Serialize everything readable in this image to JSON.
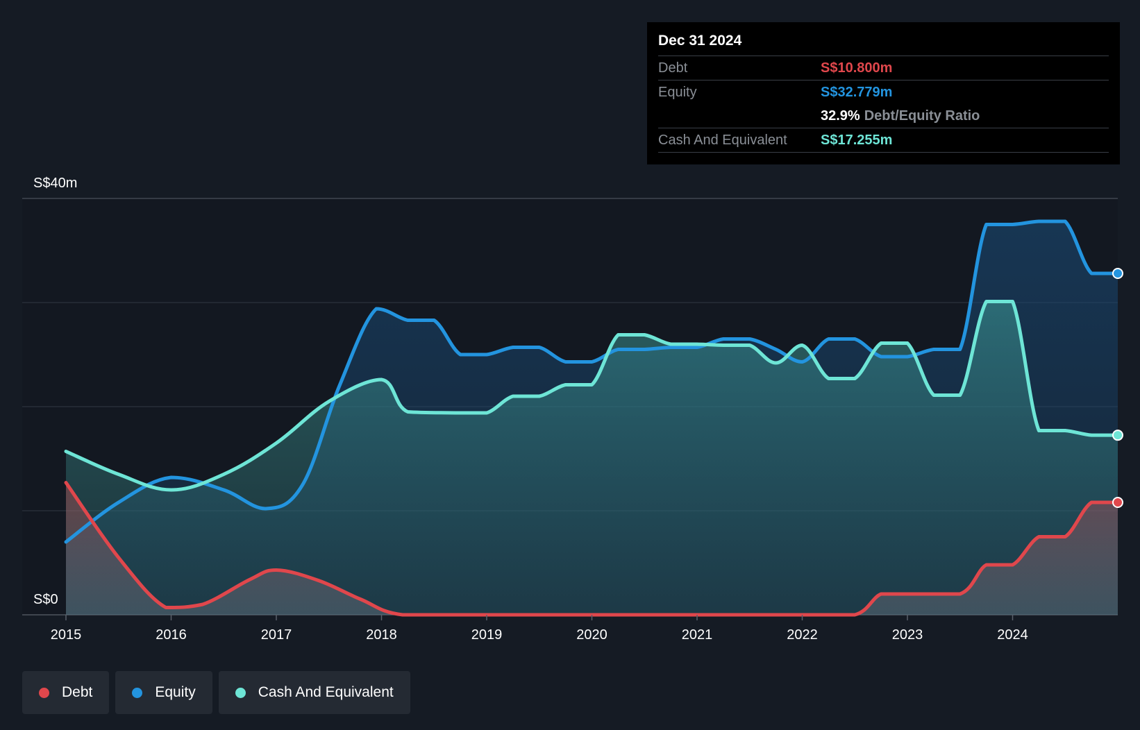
{
  "tooltip": {
    "date": "Dec 31 2024",
    "debt_label": "Debt",
    "debt_value": "S$10.800m",
    "equity_label": "Equity",
    "equity_value": "S$32.779m",
    "ratio_value": "32.9%",
    "ratio_label": "Debt/Equity Ratio",
    "cash_label": "Cash And Equivalent",
    "cash_value": "S$17.255m"
  },
  "legend": {
    "debt": "Debt",
    "equity": "Equity",
    "cash": "Cash And Equivalent"
  },
  "colors": {
    "debt": "#e0474c",
    "equity": "#2394df",
    "cash": "#6ee5d6",
    "background": "#151b24"
  },
  "chart_data": {
    "type": "area",
    "ylim": [
      0,
      40
    ],
    "xlim": [
      2015,
      2025
    ],
    "y_tick_labels": [
      "S$0",
      "S$40m"
    ],
    "x_ticks": [
      2015,
      2016,
      2017,
      2018,
      2019,
      2020,
      2021,
      2022,
      2023,
      2024
    ],
    "grid": true,
    "legend_position": "bottom-left",
    "series": [
      {
        "name": "Debt",
        "x": [
          2015.0,
          2015.5,
          2015.95,
          2016.3,
          2016.75,
          2017.0,
          2017.4,
          2017.8,
          2018.2,
          2019.0,
          2020.0,
          2021.0,
          2022.0,
          2022.5,
          2022.75,
          2023.0,
          2023.5,
          2023.75,
          2024.0,
          2024.25,
          2024.5,
          2024.75,
          2025.0
        ],
        "y": [
          12.7,
          5.5,
          0.7,
          1.0,
          3.4,
          4.3,
          3.3,
          1.5,
          0.0,
          0.0,
          0.0,
          0.0,
          0.0,
          0.0,
          2.0,
          2.0,
          2.0,
          4.8,
          4.8,
          7.5,
          7.5,
          10.8,
          10.8
        ]
      },
      {
        "name": "Equity",
        "x": [
          2015.0,
          2015.5,
          2016.0,
          2016.5,
          2016.9,
          2017.25,
          2017.6,
          2017.95,
          2018.25,
          2018.5,
          2018.75,
          2019.0,
          2019.25,
          2019.5,
          2019.75,
          2020.0,
          2020.25,
          2020.5,
          2020.75,
          2021.0,
          2021.25,
          2021.5,
          2021.75,
          2022.0,
          2022.25,
          2022.5,
          2022.75,
          2023.0,
          2023.25,
          2023.5,
          2023.75,
          2024.0,
          2024.25,
          2024.5,
          2024.75,
          2025.0
        ],
        "y": [
          7.0,
          10.8,
          13.2,
          12.0,
          10.2,
          12.5,
          22.0,
          29.4,
          28.3,
          28.3,
          25.0,
          25.0,
          25.7,
          25.7,
          24.3,
          24.3,
          25.5,
          25.5,
          25.7,
          25.7,
          26.5,
          26.5,
          25.5,
          24.3,
          26.5,
          26.5,
          24.8,
          24.8,
          25.5,
          25.5,
          37.5,
          37.5,
          37.8,
          37.8,
          32.8,
          32.8
        ]
      },
      {
        "name": "Cash And Equivalent",
        "x": [
          2015.0,
          2015.5,
          2016.0,
          2016.5,
          2017.0,
          2017.5,
          2018.0,
          2018.25,
          2018.75,
          2019.0,
          2019.25,
          2019.5,
          2019.75,
          2020.0,
          2020.25,
          2020.5,
          2020.75,
          2021.0,
          2021.25,
          2021.5,
          2021.75,
          2022.0,
          2022.25,
          2022.5,
          2022.75,
          2023.0,
          2023.25,
          2023.5,
          2023.75,
          2024.0,
          2024.25,
          2024.5,
          2024.75,
          2025.0
        ],
        "y": [
          15.7,
          13.5,
          12.0,
          13.5,
          16.5,
          20.5,
          22.6,
          19.5,
          19.4,
          19.4,
          21.0,
          21.0,
          22.1,
          22.1,
          26.9,
          26.9,
          26.0,
          26.0,
          25.9,
          25.9,
          24.2,
          25.9,
          22.7,
          22.7,
          26.1,
          26.1,
          21.1,
          21.1,
          30.1,
          30.1,
          17.7,
          17.7,
          17.255,
          17.255
        ]
      }
    ]
  }
}
